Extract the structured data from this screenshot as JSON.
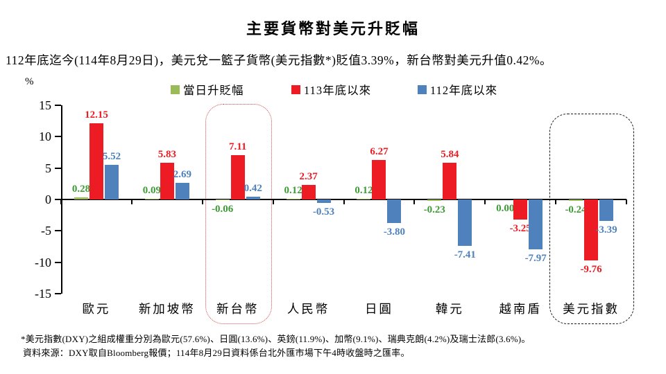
{
  "title": "主要貨幣對美元升貶幅",
  "subtitle": "112年底迄今(114年8月29日)，美元兌一籃子貨幣(美元指數*)貶值3.39%，新台幣對美元升值0.42%。",
  "unit_label": "%",
  "colors": {
    "green_bar": "#9BBB59",
    "green_label": "#3C9B35",
    "red": "#ED1C24",
    "blue": "#4F81BD",
    "axis": "#000000",
    "red_box_border": "#cd4a44",
    "black_box_border": "#1a1a1a"
  },
  "chart_data": {
    "type": "bar",
    "title": "主要貨幣對美元升貶幅",
    "ylabel": "%",
    "ylim": [
      -15,
      15
    ],
    "yticks": [
      15,
      10,
      5,
      0,
      -5,
      -10,
      -15
    ],
    "grid": false,
    "legend_position": "top",
    "categories": [
      "歐元",
      "新加坡幣",
      "新台幣",
      "人民幣",
      "日圓",
      "韓元",
      "越南盾",
      "美元指數"
    ],
    "series": [
      {
        "name": "當日升貶幅",
        "bar_color": "#9BBB59",
        "label_color": "#3C9B35",
        "values": [
          0.28,
          0.09,
          -0.06,
          0.12,
          0.12,
          -0.23,
          0.0,
          -0.24
        ]
      },
      {
        "name": "113年底以來",
        "bar_color": "#ED1C24",
        "label_color": "#ED1C24",
        "values": [
          12.15,
          5.83,
          7.11,
          2.37,
          6.27,
          5.84,
          -3.25,
          -9.76
        ]
      },
      {
        "name": "112年底以來",
        "bar_color": "#4F81BD",
        "label_color": "#4F81BD",
        "values": [
          5.52,
          2.69,
          0.42,
          -0.53,
          -3.8,
          -7.41,
          -7.97,
          -3.39
        ]
      }
    ],
    "highlight_boxes": [
      {
        "category": "新台幣",
        "style": "red-dotted"
      },
      {
        "category": "美元指數",
        "style": "black-dashed"
      }
    ]
  },
  "footnotes": [
    "*美元指數(DXY)之組成權重分別為歐元(57.6%)、日圓(13.6%)、英鎊(11.9%)、加幣(9.1%)、瑞典克朗(4.2%)及瑞士法郎(3.6%)。",
    "資料來源：DXY取自Bloomberg報價；114年8月29日資料係台北外匯市場下午4時收盤時之匯率。"
  ]
}
